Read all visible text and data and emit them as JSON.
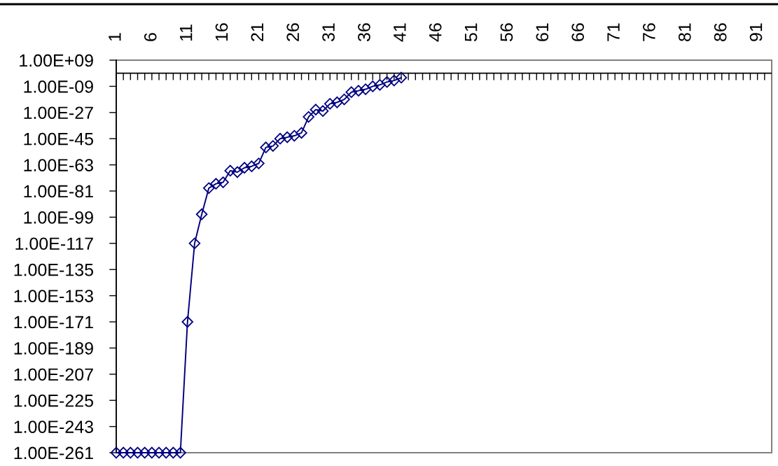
{
  "chart_data": {
    "type": "line",
    "categories": [
      "1",
      null,
      null,
      null,
      null,
      "6",
      null,
      null,
      null,
      null,
      "11",
      null,
      null,
      null,
      null,
      "16",
      null,
      null,
      null,
      null,
      "21",
      null,
      null,
      null,
      null,
      "26",
      null,
      null,
      null,
      null,
      "31",
      null,
      null,
      null,
      null,
      "36",
      null,
      null,
      null,
      null,
      "41",
      null,
      null,
      null,
      null,
      "46",
      null,
      null,
      null,
      null,
      "51",
      null,
      null,
      null,
      null,
      "56",
      null,
      null,
      null,
      null,
      "61",
      null,
      null,
      null,
      null,
      "66",
      null,
      null,
      null,
      null,
      "71",
      null,
      null,
      null,
      null,
      "76",
      null,
      null,
      null,
      null,
      "81",
      null,
      null,
      null,
      null,
      "86",
      null,
      null,
      null,
      null,
      "91",
      null,
      null
    ],
    "series": [
      {
        "color": "#000080",
        "values": [
          1e-261,
          1e-261,
          1e-261,
          1e-261,
          1e-261,
          1e-261,
          1e-261,
          1e-261,
          1e-261,
          1e-261,
          1e-171,
          1e-117,
          1e-97,
          1e-79,
          1e-76,
          1e-75,
          1e-67,
          1e-68,
          1e-65,
          1e-64,
          1e-62,
          1e-51,
          1e-50,
          1e-45,
          1e-44,
          1e-43,
          1e-41,
          1e-30,
          1e-25,
          1e-26,
          1e-21,
          1e-20,
          1e-18,
          1e-13,
          1e-12,
          1e-11,
          1e-09,
          1e-08,
          1e-06,
          1e-05,
          0.001,
          null,
          null,
          null,
          null,
          null,
          null,
          null,
          null,
          null,
          null,
          null,
          null,
          null,
          null,
          null,
          null,
          null,
          null,
          null,
          null,
          null,
          null,
          null,
          null,
          null,
          null,
          null,
          null,
          null,
          null,
          null,
          null,
          null,
          null,
          null,
          null,
          null,
          null,
          null,
          null,
          null,
          null,
          null,
          null,
          null,
          null,
          null,
          null,
          null,
          null,
          null,
          null
        ]
      }
    ],
    "log": true,
    "ylim": [
      1e-261,
      1000000000.0
    ],
    "yticks": [
      {
        "value": 1000000000.0,
        "label": "1.00E+09"
      },
      {
        "value": 1e-09,
        "label": "1.00E-09"
      },
      {
        "value": 1e-27,
        "label": "1.00E-27"
      },
      {
        "value": 1e-45,
        "label": "1.00E-45"
      },
      {
        "value": 1e-63,
        "label": "1.00E-63"
      },
      {
        "value": 1e-81,
        "label": "1.00E-81"
      },
      {
        "value": 1e-99,
        "label": "1.00E-99"
      },
      {
        "value": 1e-117,
        "label": "1.00E-117"
      },
      {
        "value": 1e-135,
        "label": "1.00E-135"
      },
      {
        "value": 1e-153,
        "label": "1.00E-153"
      },
      {
        "value": 1e-171,
        "label": "1.00E-171"
      },
      {
        "value": 1e-189,
        "label": "1.00E-189"
      },
      {
        "value": 1e-207,
        "label": "1.00E-207"
      },
      {
        "value": 1e-225,
        "label": "1.00E-225"
      },
      {
        "value": 1e-243,
        "label": "1.00E-243"
      },
      {
        "value": 1e-261,
        "label": "1.00E-261"
      }
    ],
    "ref_lines": [
      {
        "axis": "y",
        "value": 1,
        "color": "#000000"
      }
    ],
    "marker": "diamond",
    "line_style": "solid",
    "grid": false
  }
}
